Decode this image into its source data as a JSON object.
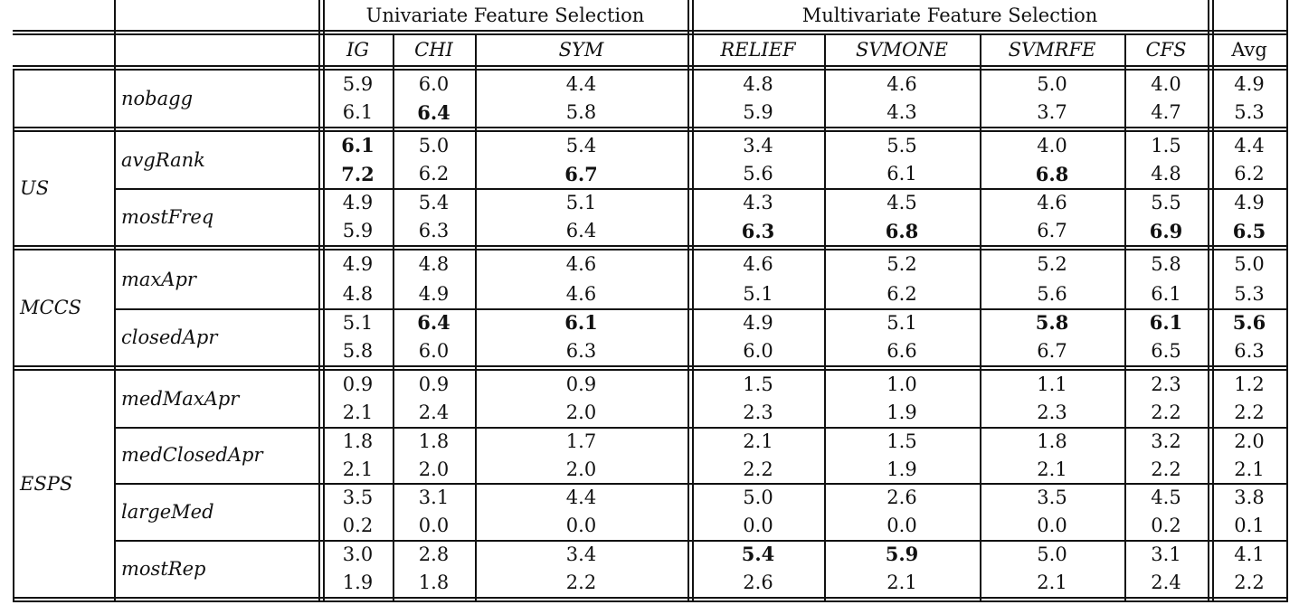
{
  "header": {
    "groups": [
      "Univariate Feature Selection",
      "Multivariate Feature Selection"
    ],
    "columns": [
      "IG",
      "CHI",
      "SYM",
      "RELIEF",
      "SVMONE",
      "SVMRFE",
      "CFS",
      "Avg"
    ]
  },
  "groups": [
    "US",
    "MCCS",
    "ESPS"
  ],
  "rows": [
    {
      "group": "",
      "method": "nobagg",
      "top": [
        "5.9",
        "6.0",
        "4.4",
        "4.8",
        "4.6",
        "5.0",
        "4.0",
        "4.9"
      ],
      "bold_top": [],
      "bottom": [
        "6.1",
        "6.4",
        "5.8",
        "5.9",
        "4.3",
        "3.7",
        "4.7",
        "5.3"
      ],
      "bold_bottom": [
        1
      ]
    },
    {
      "group": "US",
      "method": "avgRank",
      "top": [
        "6.1",
        "5.0",
        "5.4",
        "3.4",
        "5.5",
        "4.0",
        "1.5",
        "4.4"
      ],
      "bold_top": [
        0
      ],
      "bottom": [
        "7.2",
        "6.2",
        "6.7",
        "5.6",
        "6.1",
        "6.8",
        "4.8",
        "6.2"
      ],
      "bold_bottom": [
        0,
        2,
        5
      ]
    },
    {
      "group": "US",
      "method": "mostFreq",
      "top": [
        "4.9",
        "5.4",
        "5.1",
        "4.3",
        "4.5",
        "4.6",
        "5.5",
        "4.9"
      ],
      "bold_top": [],
      "bottom": [
        "5.9",
        "6.3",
        "6.4",
        "6.3",
        "6.8",
        "6.7",
        "6.9",
        "6.5"
      ],
      "bold_bottom": [
        3,
        4,
        6,
        7
      ]
    },
    {
      "group": "MCCS",
      "method": "maxApr",
      "top": [
        "4.9",
        "4.8",
        "4.6",
        "4.6",
        "5.2",
        "5.2",
        "5.8",
        "5.0"
      ],
      "bold_top": [],
      "bottom": [
        "4.8",
        "4.9",
        "4.6",
        "5.1",
        "6.2",
        "5.6",
        "6.1",
        "5.3"
      ],
      "bold_bottom": []
    },
    {
      "group": "MCCS",
      "method": "closedApr",
      "top": [
        "5.1",
        "6.4",
        "6.1",
        "4.9",
        "5.1",
        "5.8",
        "6.1",
        "5.6"
      ],
      "bold_top": [
        1,
        2,
        5,
        6,
        7
      ],
      "bottom": [
        "5.8",
        "6.0",
        "6.3",
        "6.0",
        "6.6",
        "6.7",
        "6.5",
        "6.3"
      ],
      "bold_bottom": []
    },
    {
      "group": "ESPS",
      "method": "medMaxApr",
      "top": [
        "0.9",
        "0.9",
        "0.9",
        "1.5",
        "1.0",
        "1.1",
        "2.3",
        "1.2"
      ],
      "bold_top": [],
      "bottom": [
        "2.1",
        "2.4",
        "2.0",
        "2.3",
        "1.9",
        "2.3",
        "2.2",
        "2.2"
      ],
      "bold_bottom": []
    },
    {
      "group": "ESPS",
      "method": "medClosedApr",
      "top": [
        "1.8",
        "1.8",
        "1.7",
        "2.1",
        "1.5",
        "1.8",
        "3.2",
        "2.0"
      ],
      "bold_top": [],
      "bottom": [
        "2.1",
        "2.0",
        "2.0",
        "2.2",
        "1.9",
        "2.1",
        "2.2",
        "2.1"
      ],
      "bold_bottom": []
    },
    {
      "group": "ESPS",
      "method": "largeMed",
      "top": [
        "3.5",
        "3.1",
        "4.4",
        "5.0",
        "2.6",
        "3.5",
        "4.5",
        "3.8"
      ],
      "bold_top": [],
      "bottom": [
        "0.2",
        "0.0",
        "0.0",
        "0.0",
        "0.0",
        "0.0",
        "0.2",
        "0.1"
      ],
      "bold_bottom": []
    },
    {
      "group": "ESPS",
      "method": "mostRep",
      "top": [
        "3.0",
        "2.8",
        "3.4",
        "5.4",
        "5.9",
        "5.0",
        "3.1",
        "4.1"
      ],
      "bold_top": [
        3,
        4
      ],
      "bottom": [
        "1.9",
        "1.8",
        "2.2",
        "2.6",
        "2.1",
        "2.1",
        "2.4",
        "2.2"
      ],
      "bold_bottom": []
    }
  ]
}
